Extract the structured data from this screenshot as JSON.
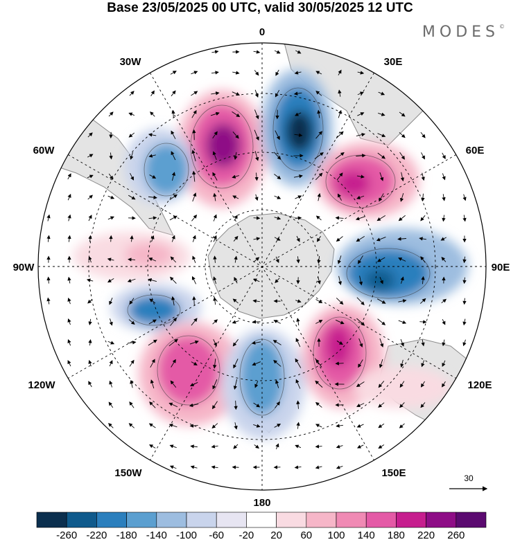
{
  "header": {
    "title": "Base 23/05/2025 00 UTC, valid 30/05/2025 12 UTC",
    "brand": "MODES",
    "brand_mark": "©"
  },
  "map": {
    "projection": "south polar stereographic",
    "longitude_labels": {
      "lon_0": "0",
      "lon_30e": "30E",
      "lon_60e": "60E",
      "lon_90e": "90E",
      "lon_120e": "120E",
      "lon_150e": "150E",
      "lon_180": "180",
      "lon_150w": "150W",
      "lon_120w": "120W",
      "lon_90w": "90W",
      "lon_60w": "60W",
      "lon_30w": "30W"
    },
    "vector_reference": "30",
    "colors": {
      "land": "#e4e4e4",
      "coast": "#8a8a8a",
      "grid": "#000000"
    }
  },
  "colorbar": {
    "levels": [
      "-260",
      "-220",
      "-180",
      "-140",
      "-100",
      "-60",
      "-20",
      "20",
      "60",
      "100",
      "140",
      "180",
      "220",
      "260"
    ],
    "colors": [
      "#0b2f4e",
      "#0f5a8c",
      "#2b7fbd",
      "#5b9fd0",
      "#9dbde0",
      "#c9d4ec",
      "#e7e5f2",
      "#ffffff",
      "#f9dbe2",
      "#f6b6c8",
      "#f08ab4",
      "#e45aa6",
      "#c61e8e",
      "#8e0d86",
      "#5b0a70"
    ]
  }
}
